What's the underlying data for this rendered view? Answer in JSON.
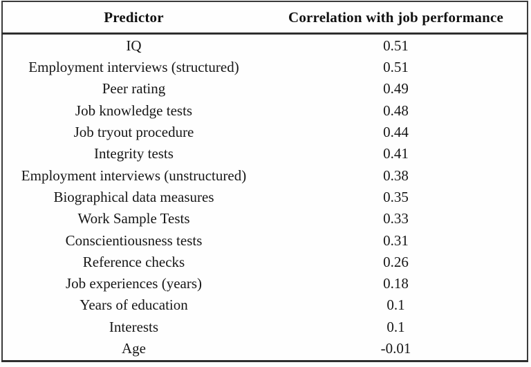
{
  "page": {
    "background_color": "#ffffff",
    "border_color": "#333333",
    "text_color": "#161616"
  },
  "table": {
    "columns": [
      "Predictor",
      "Correlation with job performance"
    ],
    "rows": [
      {
        "predictor": "IQ",
        "correlation": "0.51"
      },
      {
        "predictor": "Employment interviews (structured)",
        "correlation": "0.51"
      },
      {
        "predictor": "Peer rating",
        "correlation": "0.49"
      },
      {
        "predictor": "Job knowledge tests",
        "correlation": "0.48"
      },
      {
        "predictor": "Job tryout procedure",
        "correlation": "0.44"
      },
      {
        "predictor": "Integrity tests",
        "correlation": "0.41"
      },
      {
        "predictor": "Employment interviews (unstructured)",
        "correlation": "0.38"
      },
      {
        "predictor": "Biographical data measures",
        "correlation": "0.35"
      },
      {
        "predictor": "Work Sample Tests",
        "correlation": "0.33"
      },
      {
        "predictor": "Conscientiousness tests",
        "correlation": "0.31"
      },
      {
        "predictor": "Reference checks",
        "correlation": "0.26"
      },
      {
        "predictor": "Job experiences (years)",
        "correlation": "0.18"
      },
      {
        "predictor": "Years of education",
        "correlation": "0.1"
      },
      {
        "predictor": "Interests",
        "correlation": "0.1"
      },
      {
        "predictor": "Age",
        "correlation": "-0.01"
      }
    ]
  },
  "chart_data": {
    "type": "table",
    "columns": [
      "Predictor",
      "Correlation with job performance"
    ],
    "rows": [
      [
        "IQ",
        0.51
      ],
      [
        "Employment interviews (structured)",
        0.51
      ],
      [
        "Peer rating",
        0.49
      ],
      [
        "Job knowledge tests",
        0.48
      ],
      [
        "Job tryout procedure",
        0.44
      ],
      [
        "Integrity tests",
        0.41
      ],
      [
        "Employment interviews (unstructured)",
        0.38
      ],
      [
        "Biographical data measures",
        0.35
      ],
      [
        "Work Sample Tests",
        0.33
      ],
      [
        "Conscientiousness tests",
        0.31
      ],
      [
        "Reference checks",
        0.26
      ],
      [
        "Job experiences (years)",
        0.18
      ],
      [
        "Years of education",
        0.1
      ],
      [
        "Interests",
        0.1
      ],
      [
        "Age",
        -0.01
      ]
    ]
  }
}
